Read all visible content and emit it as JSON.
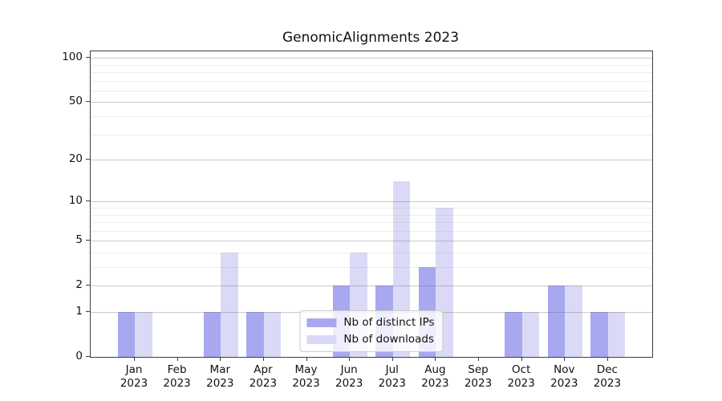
{
  "chart_data": {
    "type": "bar",
    "title": "GenomicAlignments 2023",
    "categories": [
      {
        "month": "Jan",
        "year": "2023"
      },
      {
        "month": "Feb",
        "year": "2023"
      },
      {
        "month": "Mar",
        "year": "2023"
      },
      {
        "month": "Apr",
        "year": "2023"
      },
      {
        "month": "May",
        "year": "2023"
      },
      {
        "month": "Jun",
        "year": "2023"
      },
      {
        "month": "Jul",
        "year": "2023"
      },
      {
        "month": "Aug",
        "year": "2023"
      },
      {
        "month": "Sep",
        "year": "2023"
      },
      {
        "month": "Oct",
        "year": "2023"
      },
      {
        "month": "Nov",
        "year": "2023"
      },
      {
        "month": "Dec",
        "year": "2023"
      }
    ],
    "series": [
      {
        "name": "Nb of distinct IPs",
        "color": "#a8a8f0",
        "values": [
          1,
          0,
          1,
          1,
          0,
          2,
          2,
          3,
          0,
          1,
          2,
          1
        ]
      },
      {
        "name": "Nb of downloads",
        "color": "#dadaf6",
        "values": [
          1,
          0,
          4,
          1,
          0,
          4,
          14,
          9,
          0,
          1,
          2,
          1
        ]
      }
    ],
    "y_axis": {
      "scale": "log1p",
      "tick_values": [
        100,
        50,
        20,
        10,
        5,
        2,
        1,
        0
      ],
      "tick_labels": [
        "100",
        "50",
        "20",
        "10",
        "5",
        "2",
        "1",
        "0"
      ],
      "minor_gridline_values": [
        3,
        4,
        6,
        7,
        8,
        9,
        30,
        40,
        60,
        70,
        80,
        90
      ],
      "range_top": 111
    },
    "legend_position": "lower center",
    "grid": "horizontal"
  }
}
